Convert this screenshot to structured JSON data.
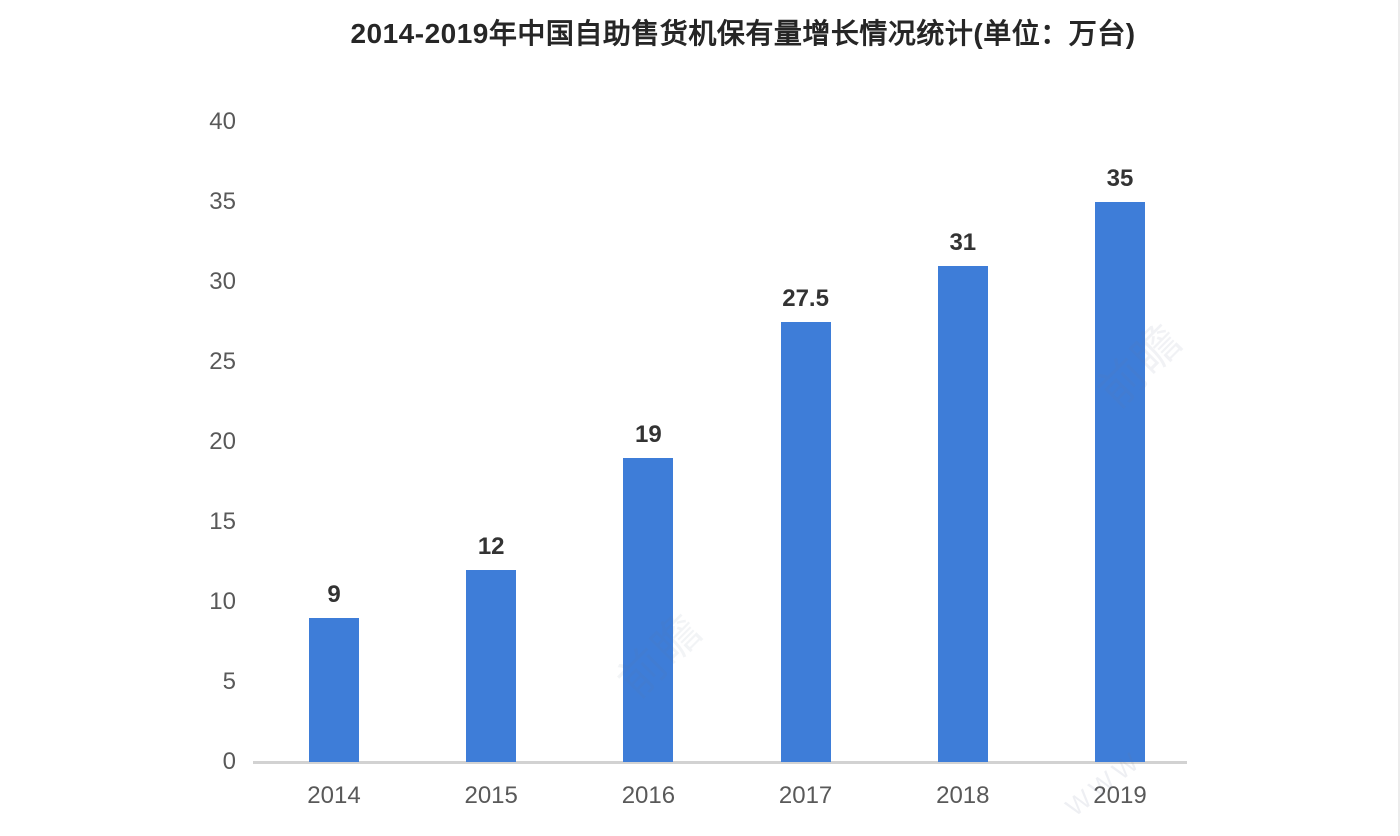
{
  "chart_data": {
    "type": "bar",
    "title": "2014-2019年中国自助售货机保有量增长情况统计(单位：万台)",
    "categories": [
      "2014",
      "2015",
      "2016",
      "2017",
      "2018",
      "2019"
    ],
    "values": [
      9,
      12,
      19,
      27.5,
      31,
      35
    ],
    "value_labels": [
      "9",
      "12",
      "19",
      "27.5",
      "31",
      "35"
    ],
    "xlabel": "",
    "ylabel": "",
    "ylim": [
      0,
      40
    ],
    "y_ticks": [
      40,
      35,
      30,
      25,
      20,
      15,
      10,
      5,
      0
    ],
    "grid": false,
    "legend": "none",
    "bar_color": "#3e7dd8",
    "axis_line_color": "#d2d2d2",
    "tick_label_color": "#595959",
    "value_label_color": "#333333",
    "title_color": "#262626"
  },
  "watermarks": [
    "前瞻",
    "前瞻",
    "WWW"
  ]
}
